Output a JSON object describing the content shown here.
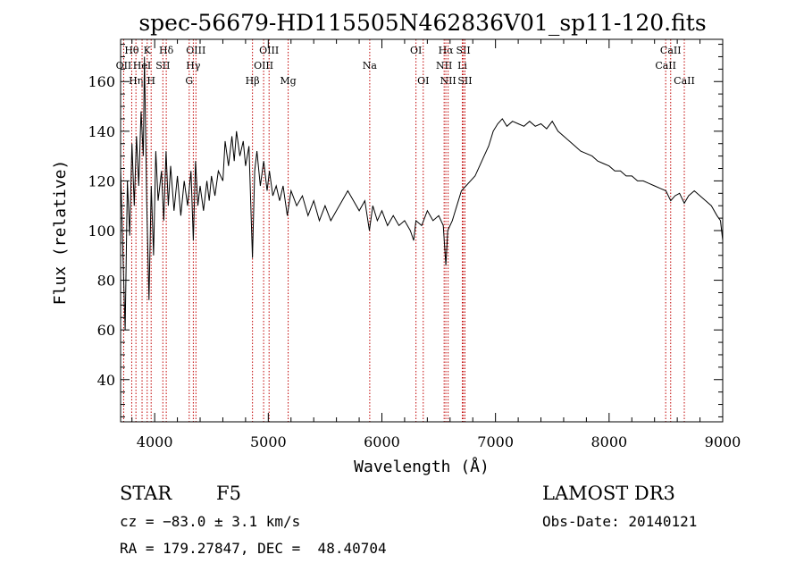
{
  "chart_data": {
    "type": "line",
    "title": "spec-56679-HD115505N462836V01_sp11-120.fits",
    "xlabel": "Wavelength (Å)",
    "ylabel": "Flux (relative)",
    "xlim": [
      3700,
      9000
    ],
    "ylim": [
      23,
      177
    ],
    "xticks": [
      4000,
      5000,
      6000,
      7000,
      8000,
      9000
    ],
    "yticks": [
      40,
      60,
      80,
      100,
      120,
      140,
      160
    ],
    "series": [
      {
        "name": "flux",
        "color": "#000000",
        "points": [
          [
            3700,
            125
          ],
          [
            3720,
            92
          ],
          [
            3740,
            60
          ],
          [
            3760,
            120
          ],
          [
            3780,
            98
          ],
          [
            3800,
            135
          ],
          [
            3820,
            110
          ],
          [
            3840,
            138
          ],
          [
            3860,
            118
          ],
          [
            3880,
            148
          ],
          [
            3900,
            130
          ],
          [
            3910,
            170
          ],
          [
            3930,
            112
          ],
          [
            3950,
            72
          ],
          [
            3970,
            118
          ],
          [
            3990,
            90
          ],
          [
            4010,
            132
          ],
          [
            4030,
            112
          ],
          [
            4060,
            124
          ],
          [
            4080,
            104
          ],
          [
            4100,
            132
          ],
          [
            4120,
            110
          ],
          [
            4140,
            126
          ],
          [
            4170,
            108
          ],
          [
            4200,
            122
          ],
          [
            4230,
            106
          ],
          [
            4260,
            120
          ],
          [
            4290,
            110
          ],
          [
            4320,
            124
          ],
          [
            4340,
            96
          ],
          [
            4360,
            128
          ],
          [
            4380,
            110
          ],
          [
            4400,
            118
          ],
          [
            4430,
            108
          ],
          [
            4460,
            120
          ],
          [
            4480,
            112
          ],
          [
            4500,
            122
          ],
          [
            4530,
            114
          ],
          [
            4560,
            124
          ],
          [
            4600,
            120
          ],
          [
            4620,
            136
          ],
          [
            4650,
            126
          ],
          [
            4680,
            138
          ],
          [
            4700,
            128
          ],
          [
            4720,
            140
          ],
          [
            4750,
            130
          ],
          [
            4780,
            136
          ],
          [
            4800,
            126
          ],
          [
            4830,
            134
          ],
          [
            4861,
            89
          ],
          [
            4880,
            124
          ],
          [
            4900,
            132
          ],
          [
            4930,
            118
          ],
          [
            4960,
            128
          ],
          [
            4990,
            116
          ],
          [
            5010,
            124
          ],
          [
            5040,
            114
          ],
          [
            5070,
            118
          ],
          [
            5100,
            112
          ],
          [
            5130,
            118
          ],
          [
            5167,
            106
          ],
          [
            5200,
            116
          ],
          [
            5250,
            110
          ],
          [
            5300,
            114
          ],
          [
            5350,
            106
          ],
          [
            5400,
            112
          ],
          [
            5450,
            104
          ],
          [
            5500,
            110
          ],
          [
            5550,
            104
          ],
          [
            5600,
            108
          ],
          [
            5650,
            112
          ],
          [
            5700,
            116
          ],
          [
            5750,
            112
          ],
          [
            5800,
            108
          ],
          [
            5850,
            112
          ],
          [
            5890,
            100
          ],
          [
            5920,
            110
          ],
          [
            5960,
            104
          ],
          [
            6000,
            108
          ],
          [
            6050,
            102
          ],
          [
            6100,
            106
          ],
          [
            6150,
            102
          ],
          [
            6200,
            104
          ],
          [
            6250,
            100
          ],
          [
            6280,
            96
          ],
          [
            6300,
            104
          ],
          [
            6350,
            102
          ],
          [
            6400,
            108
          ],
          [
            6450,
            104
          ],
          [
            6500,
            106
          ],
          [
            6540,
            102
          ],
          [
            6563,
            86
          ],
          [
            6580,
            100
          ],
          [
            6620,
            104
          ],
          [
            6660,
            110
          ],
          [
            6700,
            116
          ],
          [
            6740,
            118
          ],
          [
            6780,
            120
          ],
          [
            6820,
            122
          ],
          [
            6860,
            126
          ],
          [
            6900,
            130
          ],
          [
            6940,
            134
          ],
          [
            6980,
            140
          ],
          [
            7020,
            143
          ],
          [
            7060,
            145
          ],
          [
            7100,
            142
          ],
          [
            7150,
            144
          ],
          [
            7200,
            143
          ],
          [
            7250,
            142
          ],
          [
            7300,
            144
          ],
          [
            7350,
            142
          ],
          [
            7400,
            143
          ],
          [
            7450,
            141
          ],
          [
            7500,
            144
          ],
          [
            7550,
            140
          ],
          [
            7600,
            138
          ],
          [
            7650,
            136
          ],
          [
            7700,
            134
          ],
          [
            7750,
            132
          ],
          [
            7800,
            131
          ],
          [
            7850,
            130
          ],
          [
            7900,
            128
          ],
          [
            7950,
            127
          ],
          [
            8000,
            126
          ],
          [
            8050,
            124
          ],
          [
            8100,
            124
          ],
          [
            8150,
            122
          ],
          [
            8200,
            122
          ],
          [
            8250,
            120
          ],
          [
            8300,
            120
          ],
          [
            8350,
            119
          ],
          [
            8400,
            118
          ],
          [
            8450,
            117
          ],
          [
            8500,
            116
          ],
          [
            8542,
            112
          ],
          [
            8580,
            114
          ],
          [
            8620,
            115
          ],
          [
            8662,
            111
          ],
          [
            8700,
            114
          ],
          [
            8750,
            116
          ],
          [
            8800,
            114
          ],
          [
            8850,
            112
          ],
          [
            8900,
            110
          ],
          [
            8950,
            106
          ],
          [
            8980,
            104
          ],
          [
            9000,
            96
          ]
        ]
      }
    ],
    "lines": [
      {
        "label": "Hθ",
        "wl": 3798,
        "row": 1
      },
      {
        "label": "OII",
        "wl": 3727,
        "row": 2
      },
      {
        "label": "Hη",
        "wl": 3835,
        "row": 3
      },
      {
        "label": "K",
        "wl": 3934,
        "row": 1
      },
      {
        "label": "HeI",
        "wl": 3889,
        "row": 2
      },
      {
        "label": "H",
        "wl": 3969,
        "row": 3
      },
      {
        "label": "Hδ",
        "wl": 4102,
        "row": 1
      },
      {
        "label": "SII",
        "wl": 4072,
        "row": 2
      },
      {
        "label": "OIII",
        "wl": 4363,
        "row": 1
      },
      {
        "label": "Hγ",
        "wl": 4340,
        "row": 2
      },
      {
        "label": "G",
        "wl": 4304,
        "row": 3
      },
      {
        "label": "Hβ",
        "wl": 4861,
        "row": 3
      },
      {
        "label": "OIII",
        "wl": 5007,
        "row": 1
      },
      {
        "label": "OIII",
        "wl": 4959,
        "row": 2
      },
      {
        "label": "Mg",
        "wl": 5175,
        "row": 3
      },
      {
        "label": "Na",
        "wl": 5893,
        "row": 2
      },
      {
        "label": "OI",
        "wl": 6300,
        "row": 1
      },
      {
        "label": "OI",
        "wl": 6364,
        "row": 3
      },
      {
        "label": "Hα",
        "wl": 6563,
        "row": 1
      },
      {
        "label": "NII",
        "wl": 6548,
        "row": 2
      },
      {
        "label": "NII",
        "wl": 6583,
        "row": 3
      },
      {
        "label": "SII",
        "wl": 6717,
        "row": 1
      },
      {
        "label": "Li",
        "wl": 6708,
        "row": 2
      },
      {
        "label": "SII",
        "wl": 6731,
        "row": 3
      },
      {
        "label": "CaII",
        "wl": 8542,
        "row": 1
      },
      {
        "label": "CaII",
        "wl": 8498,
        "row": 2
      },
      {
        "label": "CaII",
        "wl": 8662,
        "row": 3
      }
    ],
    "line_color": "#c00000"
  },
  "info": {
    "object_class": "STAR",
    "subclass": "F5",
    "survey": "LAMOST DR3",
    "cz": "cz = −83.0 ± 3.1 km/s",
    "obs_date": "Obs-Date: 20140121",
    "coords": "RA = 179.27847, DEC =  48.40704"
  }
}
